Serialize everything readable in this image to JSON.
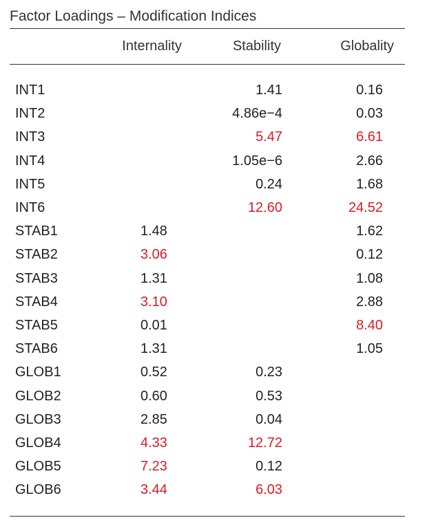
{
  "table": {
    "title": "Factor Loadings – Modification Indices",
    "columns": [
      "",
      "Internality",
      "Stability",
      "Globality"
    ],
    "highlight_color": "#d81b25",
    "rows": [
      {
        "name": "INT1",
        "internality": "",
        "stability": "1.41",
        "globality": "0.16",
        "flags": [
          false,
          false,
          false
        ]
      },
      {
        "name": "INT2",
        "internality": "",
        "stability": "4.86e−4",
        "globality": "0.03",
        "flags": [
          false,
          false,
          false
        ]
      },
      {
        "name": "INT3",
        "internality": "",
        "stability": "5.47",
        "globality": "6.61",
        "flags": [
          false,
          true,
          true
        ]
      },
      {
        "name": "INT4",
        "internality": "",
        "stability": "1.05e−6",
        "globality": "2.66",
        "flags": [
          false,
          false,
          false
        ]
      },
      {
        "name": "INT5",
        "internality": "",
        "stability": "0.24",
        "globality": "1.68",
        "flags": [
          false,
          false,
          false
        ]
      },
      {
        "name": "INT6",
        "internality": "",
        "stability": "12.60",
        "globality": "24.52",
        "flags": [
          false,
          true,
          true
        ]
      },
      {
        "name": "STAB1",
        "internality": "1.48",
        "stability": "",
        "globality": "1.62",
        "flags": [
          false,
          false,
          false
        ]
      },
      {
        "name": "STAB2",
        "internality": "3.06",
        "stability": "",
        "globality": "0.12",
        "flags": [
          true,
          false,
          false
        ]
      },
      {
        "name": "STAB3",
        "internality": "1.31",
        "stability": "",
        "globality": "1.08",
        "flags": [
          false,
          false,
          false
        ]
      },
      {
        "name": "STAB4",
        "internality": "3.10",
        "stability": "",
        "globality": "2.88",
        "flags": [
          true,
          false,
          false
        ]
      },
      {
        "name": "STAB5",
        "internality": "0.01",
        "stability": "",
        "globality": "8.40",
        "flags": [
          false,
          false,
          true
        ]
      },
      {
        "name": "STAB6",
        "internality": "1.31",
        "stability": "",
        "globality": "1.05",
        "flags": [
          false,
          false,
          false
        ]
      },
      {
        "name": "GLOB1",
        "internality": "0.52",
        "stability": "0.23",
        "globality": "",
        "flags": [
          false,
          false,
          false
        ]
      },
      {
        "name": "GLOB2",
        "internality": "0.60",
        "stability": "0.53",
        "globality": "",
        "flags": [
          false,
          false,
          false
        ]
      },
      {
        "name": "GLOB3",
        "internality": "2.85",
        "stability": "0.04",
        "globality": "",
        "flags": [
          false,
          false,
          false
        ]
      },
      {
        "name": "GLOB4",
        "internality": "4.33",
        "stability": "12.72",
        "globality": "",
        "flags": [
          true,
          true,
          false
        ]
      },
      {
        "name": "GLOB5",
        "internality": "7.23",
        "stability": "0.12",
        "globality": "",
        "flags": [
          true,
          false,
          false
        ]
      },
      {
        "name": "GLOB6",
        "internality": "3.44",
        "stability": "6.03",
        "globality": "",
        "flags": [
          true,
          true,
          false
        ]
      }
    ]
  }
}
